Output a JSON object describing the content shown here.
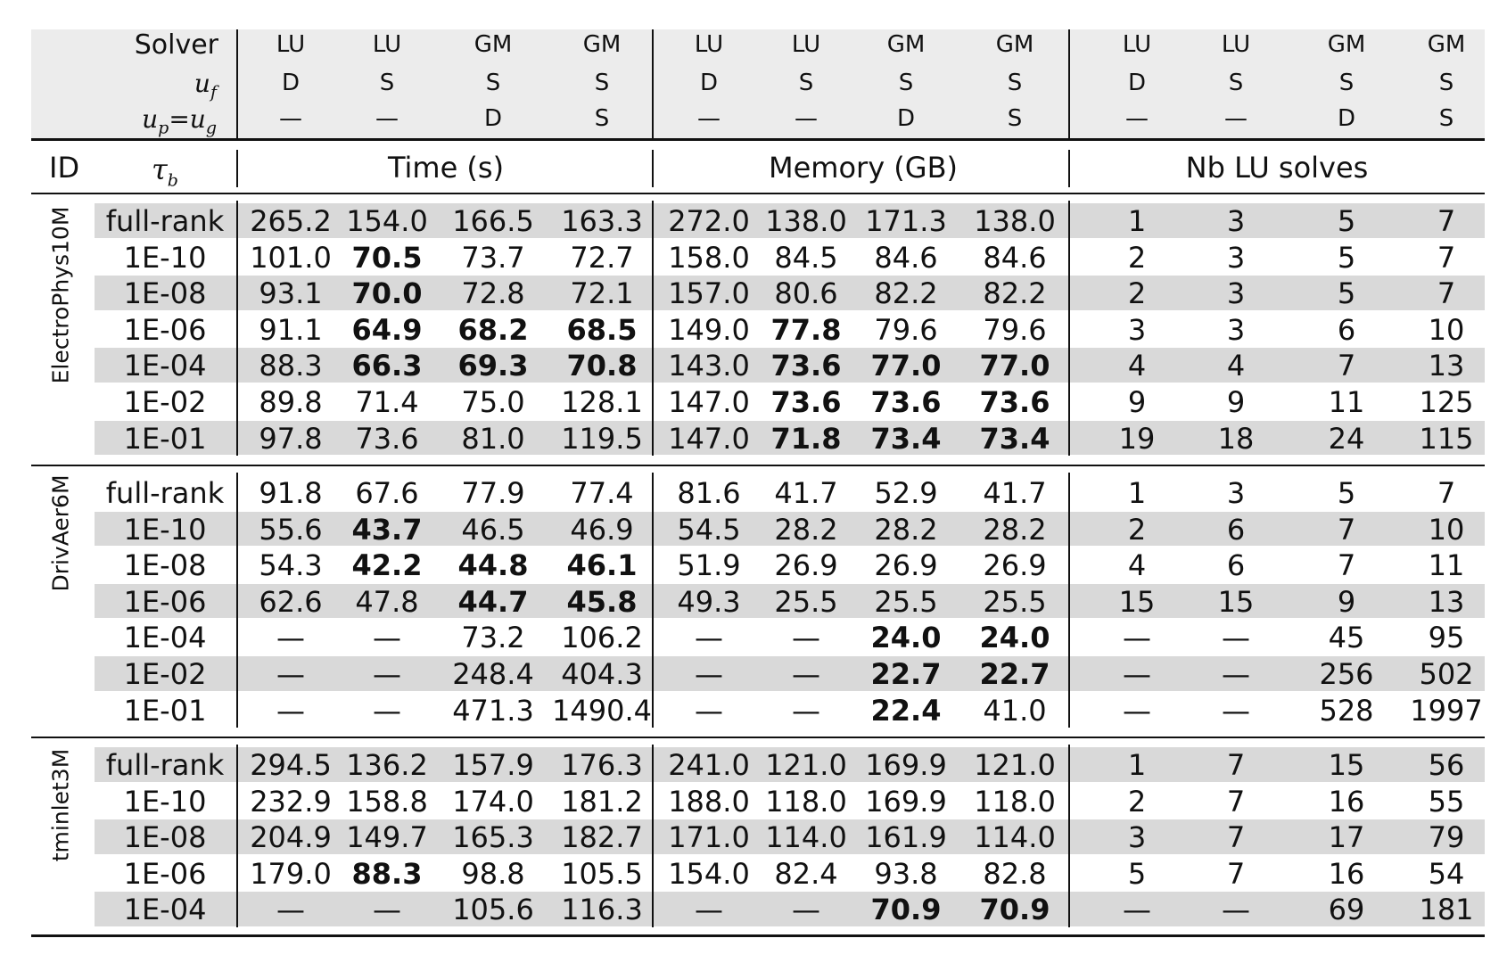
{
  "header": {
    "solver_label": "Solver",
    "uf_label": "u",
    "uf_sub": "f",
    "up_label": "u",
    "up_sub": "p",
    "ug_label": "u",
    "ug_sub": "g",
    "eq_sign": "=",
    "solvers": [
      "LU",
      "LU",
      "GM",
      "GM",
      "LU",
      "LU",
      "GM",
      "GM",
      "LU",
      "LU",
      "GM",
      "GM"
    ],
    "uf": [
      "D",
      "S",
      "S",
      "S",
      "D",
      "S",
      "S",
      "S",
      "D",
      "S",
      "S",
      "S"
    ],
    "upug": [
      "—",
      "—",
      "D",
      "S",
      "—",
      "—",
      "D",
      "S",
      "—",
      "—",
      "D",
      "S"
    ]
  },
  "subheader": {
    "id_label": "ID",
    "tau_label": "τ",
    "tau_sub": "b",
    "time_label": "Time (s)",
    "memory_label": "Memory (GB)",
    "nb_label": "Nb LU solves"
  },
  "groups": [
    {
      "name": "ElectroPhys10M",
      "rows": [
        {
          "tau": "full-rank",
          "cells": [
            "265.2",
            "154.0",
            "166.5",
            "163.3",
            "272.0",
            "138.0",
            "171.3",
            "138.0",
            "1",
            "3",
            "5",
            "7"
          ],
          "bold": []
        },
        {
          "tau": "1E-10",
          "cells": [
            "101.0",
            "70.5",
            "73.7",
            "72.7",
            "158.0",
            "84.5",
            "84.6",
            "84.6",
            "2",
            "3",
            "5",
            "7"
          ],
          "bold": [
            1
          ]
        },
        {
          "tau": "1E-08",
          "cells": [
            "93.1",
            "70.0",
            "72.8",
            "72.1",
            "157.0",
            "80.6",
            "82.2",
            "82.2",
            "2",
            "3",
            "5",
            "7"
          ],
          "bold": [
            1
          ]
        },
        {
          "tau": "1E-06",
          "cells": [
            "91.1",
            "64.9",
            "68.2",
            "68.5",
            "149.0",
            "77.8",
            "79.6",
            "79.6",
            "3",
            "3",
            "6",
            "10"
          ],
          "bold": [
            1,
            2,
            3,
            5
          ]
        },
        {
          "tau": "1E-04",
          "cells": [
            "88.3",
            "66.3",
            "69.3",
            "70.8",
            "143.0",
            "73.6",
            "77.0",
            "77.0",
            "4",
            "4",
            "7",
            "13"
          ],
          "bold": [
            1,
            2,
            3,
            5,
            6,
            7
          ]
        },
        {
          "tau": "1E-02",
          "cells": [
            "89.8",
            "71.4",
            "75.0",
            "128.1",
            "147.0",
            "73.6",
            "73.6",
            "73.6",
            "9",
            "9",
            "11",
            "125"
          ],
          "bold": [
            5,
            6,
            7
          ]
        },
        {
          "tau": "1E-01",
          "cells": [
            "97.8",
            "73.6",
            "81.0",
            "119.5",
            "147.0",
            "71.8",
            "73.4",
            "73.4",
            "19",
            "18",
            "24",
            "115"
          ],
          "bold": [
            5,
            6,
            7
          ]
        }
      ]
    },
    {
      "name": "DrivAer6M",
      "rows": [
        {
          "tau": "full-rank",
          "cells": [
            "91.8",
            "67.6",
            "77.9",
            "77.4",
            "81.6",
            "41.7",
            "52.9",
            "41.7",
            "1",
            "3",
            "5",
            "7"
          ],
          "bold": []
        },
        {
          "tau": "1E-10",
          "cells": [
            "55.6",
            "43.7",
            "46.5",
            "46.9",
            "54.5",
            "28.2",
            "28.2",
            "28.2",
            "2",
            "6",
            "7",
            "10"
          ],
          "bold": [
            1
          ]
        },
        {
          "tau": "1E-08",
          "cells": [
            "54.3",
            "42.2",
            "44.8",
            "46.1",
            "51.9",
            "26.9",
            "26.9",
            "26.9",
            "4",
            "6",
            "7",
            "11"
          ],
          "bold": [
            1,
            2,
            3
          ]
        },
        {
          "tau": "1E-06",
          "cells": [
            "62.6",
            "47.8",
            "44.7",
            "45.8",
            "49.3",
            "25.5",
            "25.5",
            "25.5",
            "15",
            "15",
            "9",
            "13"
          ],
          "bold": [
            2,
            3
          ]
        },
        {
          "tau": "1E-04",
          "cells": [
            "—",
            "—",
            "73.2",
            "106.2",
            "—",
            "—",
            "24.0",
            "24.0",
            "—",
            "—",
            "45",
            "95"
          ],
          "bold": [
            6,
            7
          ]
        },
        {
          "tau": "1E-02",
          "cells": [
            "—",
            "—",
            "248.4",
            "404.3",
            "—",
            "—",
            "22.7",
            "22.7",
            "—",
            "—",
            "256",
            "502"
          ],
          "bold": [
            6,
            7
          ]
        },
        {
          "tau": "1E-01",
          "cells": [
            "—",
            "—",
            "471.3",
            "1490.4",
            "—",
            "—",
            "22.4",
            "41.0",
            "—",
            "—",
            "528",
            "1997"
          ],
          "bold": [
            6
          ]
        }
      ]
    },
    {
      "name": "tminlet3M",
      "rows": [
        {
          "tau": "full-rank",
          "cells": [
            "294.5",
            "136.2",
            "157.9",
            "176.3",
            "241.0",
            "121.0",
            "169.9",
            "121.0",
            "1",
            "7",
            "15",
            "56"
          ],
          "bold": []
        },
        {
          "tau": "1E-10",
          "cells": [
            "232.9",
            "158.8",
            "174.0",
            "181.2",
            "188.0",
            "118.0",
            "169.9",
            "118.0",
            "2",
            "7",
            "16",
            "55"
          ],
          "bold": []
        },
        {
          "tau": "1E-08",
          "cells": [
            "204.9",
            "149.7",
            "165.3",
            "182.7",
            "171.0",
            "114.0",
            "161.9",
            "114.0",
            "3",
            "7",
            "17",
            "79"
          ],
          "bold": []
        },
        {
          "tau": "1E-06",
          "cells": [
            "179.0",
            "88.3",
            "98.8",
            "105.5",
            "154.0",
            "82.4",
            "93.8",
            "82.8",
            "5",
            "7",
            "16",
            "54"
          ],
          "bold": [
            1
          ]
        },
        {
          "tau": "1E-04",
          "cells": [
            "—",
            "—",
            "105.6",
            "116.3",
            "—",
            "—",
            "70.9",
            "70.9",
            "—",
            "—",
            "69",
            "181"
          ],
          "bold": [
            6,
            7
          ]
        }
      ]
    }
  ]
}
